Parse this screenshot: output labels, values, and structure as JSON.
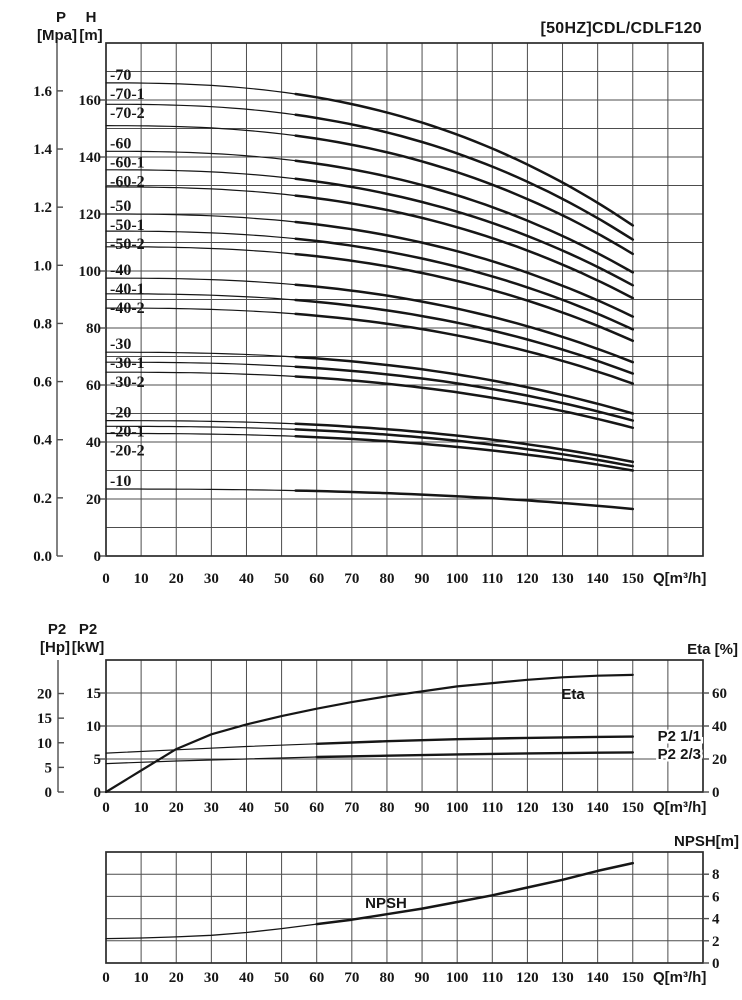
{
  "page": {
    "background": "#ffffff",
    "ink": "#161616",
    "grid_color": "#4d4d4d"
  },
  "chart_data": [
    {
      "id": "head_flow",
      "type": "line",
      "title": "[50HZ]CDL/CDLF120",
      "q_axis": {
        "unit": "Q[m³/h]",
        "tick_labels": [
          "0",
          "10",
          "20",
          "30",
          "40",
          "50",
          "60",
          "70",
          "80",
          "90",
          "100",
          "110",
          "120",
          "130",
          "140",
          "150"
        ],
        "grid_min": 0,
        "grid_max": 170,
        "grid_step": 10
      },
      "pressure_axis": {
        "name": "P",
        "unit": "[Mpa]",
        "tick_labels": [
          "0.0",
          "0.2",
          "0.4",
          "0.6",
          "0.8",
          "1.0",
          "1.2",
          "1.4",
          "1.6"
        ],
        "mpa_to_m": 102
      },
      "head_axis": {
        "name": "H",
        "unit": "[m]",
        "tick_labels": [
          "0",
          "20",
          "40",
          "60",
          "80",
          "100",
          "120",
          "140",
          "160"
        ],
        "grid_min": 0,
        "grid_max": 180,
        "grid_step": 10
      },
      "curve_drop_exponent": 2.5,
      "thick_from_q": 55,
      "q_end": 150,
      "curves": [
        {
          "label": "-70",
          "h0": 166,
          "h150": 116
        },
        {
          "label": "-70-1",
          "h0": 158.5,
          "h150": 111
        },
        {
          "label": "-70-2",
          "h0": 151,
          "h150": 106
        },
        {
          "label": "-60",
          "h0": 142,
          "h150": 99.5
        },
        {
          "label": "-60-1",
          "h0": 135.5,
          "h150": 95
        },
        {
          "label": "-60-2",
          "h0": 129.5,
          "h150": 90.5
        },
        {
          "label": "-50",
          "h0": 120,
          "h150": 84
        },
        {
          "label": "-50-1",
          "h0": 114,
          "h150": 79.5
        },
        {
          "label": "-50-2",
          "h0": 108.5,
          "h150": 75.5
        },
        {
          "label": "-40",
          "h0": 97.5,
          "h150": 68
        },
        {
          "label": "-40-1",
          "h0": 92,
          "h150": 64
        },
        {
          "label": "-40-2",
          "h0": 87,
          "h150": 60.5
        },
        {
          "label": "-30",
          "h0": 71.5,
          "h150": 50
        },
        {
          "label": "-30-1",
          "h0": 68,
          "h150": 47.5
        },
        {
          "label": "-30-2",
          "h0": 64.5,
          "h150": 45
        },
        {
          "label": "-20",
          "h0": 47.5,
          "h150": 33
        },
        {
          "label": "-20-1",
          "h0": 45.5,
          "h150": 31.5
        },
        {
          "label": "-20-2",
          "h0": 43,
          "h150": 30
        },
        {
          "label": "-10",
          "h0": 23.5,
          "h150": 16.5
        }
      ]
    },
    {
      "id": "power_efficiency",
      "type": "line",
      "q_axis": {
        "unit": "Q[m³/h]",
        "tick_labels": [
          "0",
          "10",
          "20",
          "30",
          "40",
          "50",
          "60",
          "70",
          "80",
          "90",
          "100",
          "110",
          "120",
          "130",
          "140",
          "150"
        ],
        "grid_min": 0,
        "grid_max": 170,
        "grid_step": 10
      },
      "hp_axis": {
        "name": "P2",
        "unit": "[Hp]",
        "tick_labels": [
          "0",
          "5",
          "10",
          "15",
          "20"
        ],
        "hp_to_kw": 0.746
      },
      "kw_axis": {
        "name": "P2",
        "unit": "[kW]",
        "tick_labels": [
          "0",
          "5",
          "10",
          "15"
        ],
        "grid_min": 0,
        "grid_max": 20,
        "grid_step": 5
      },
      "eta_axis": {
        "label": "Eta [%]",
        "tick_labels": [
          "0",
          "20",
          "40",
          "60"
        ],
        "grid_max": 80
      },
      "thick_from_q": 60,
      "series": [
        {
          "name": "Eta",
          "unit": "%",
          "points": [
            [
              0,
              0
            ],
            [
              10,
              13
            ],
            [
              20,
              26
            ],
            [
              30,
              35
            ],
            [
              40,
              41
            ],
            [
              50,
              46
            ],
            [
              60,
              50.5
            ],
            [
              70,
              54.5
            ],
            [
              80,
              58
            ],
            [
              90,
              61
            ],
            [
              100,
              64
            ],
            [
              110,
              66
            ],
            [
              120,
              68
            ],
            [
              130,
              69.5
            ],
            [
              140,
              70.5
            ],
            [
              150,
              71
            ]
          ]
        },
        {
          "name": "P2 1/1",
          "unit": "kW",
          "points": [
            [
              0,
              5.9
            ],
            [
              20,
              6.4
            ],
            [
              40,
              6.9
            ],
            [
              60,
              7.3
            ],
            [
              80,
              7.7
            ],
            [
              100,
              8.0
            ],
            [
              120,
              8.2
            ],
            [
              140,
              8.35
            ],
            [
              150,
              8.4
            ]
          ]
        },
        {
          "name": "P2 2/3",
          "unit": "kW",
          "points": [
            [
              0,
              4.3
            ],
            [
              20,
              4.7
            ],
            [
              40,
              5.0
            ],
            [
              60,
              5.3
            ],
            [
              80,
              5.5
            ],
            [
              100,
              5.7
            ],
            [
              120,
              5.85
            ],
            [
              140,
              5.95
            ],
            [
              150,
              6.0
            ]
          ]
        }
      ]
    },
    {
      "id": "npsh",
      "type": "line",
      "q_axis": {
        "unit": "Q[m³/h]",
        "tick_labels": [
          "0",
          "10",
          "20",
          "30",
          "40",
          "50",
          "60",
          "70",
          "80",
          "90",
          "100",
          "110",
          "120",
          "130",
          "140",
          "150"
        ],
        "grid_min": 0,
        "grid_max": 170,
        "grid_step": 10
      },
      "npsh_axis": {
        "label": "NPSH[m]",
        "tick_labels": [
          "0",
          "2",
          "4",
          "6",
          "8"
        ],
        "grid_min": 0,
        "grid_max": 10,
        "grid_step": 2
      },
      "thick_from_q": 60,
      "series": [
        {
          "name": "NPSH",
          "unit": "m",
          "points": [
            [
              0,
              2.2
            ],
            [
              10,
              2.25
            ],
            [
              20,
              2.35
            ],
            [
              30,
              2.5
            ],
            [
              40,
              2.75
            ],
            [
              50,
              3.1
            ],
            [
              60,
              3.5
            ],
            [
              70,
              3.9
            ],
            [
              80,
              4.4
            ],
            [
              90,
              4.9
            ],
            [
              100,
              5.5
            ],
            [
              110,
              6.1
            ],
            [
              120,
              6.8
            ],
            [
              130,
              7.5
            ],
            [
              140,
              8.3
            ],
            [
              150,
              9.0
            ]
          ]
        }
      ]
    }
  ]
}
